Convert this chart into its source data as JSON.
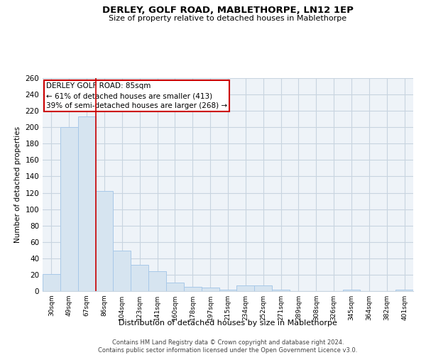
{
  "title": "DERLEY, GOLF ROAD, MABLETHORPE, LN12 1EP",
  "subtitle": "Size of property relative to detached houses in Mablethorpe",
  "xlabel": "Distribution of detached houses by size in Mablethorpe",
  "ylabel": "Number of detached properties",
  "bin_labels": [
    "30sqm",
    "49sqm",
    "67sqm",
    "86sqm",
    "104sqm",
    "123sqm",
    "141sqm",
    "160sqm",
    "178sqm",
    "197sqm",
    "215sqm",
    "234sqm",
    "252sqm",
    "271sqm",
    "289sqm",
    "308sqm",
    "326sqm",
    "345sqm",
    "364sqm",
    "382sqm",
    "401sqm"
  ],
  "bar_heights": [
    21,
    200,
    213,
    122,
    49,
    32,
    24,
    10,
    5,
    4,
    2,
    7,
    7,
    2,
    0,
    0,
    0,
    2,
    0,
    0,
    2
  ],
  "bar_color": "#d6e4f0",
  "bar_edge_color": "#a8c8e8",
  "vline_color": "#cc0000",
  "vline_x": 2.5,
  "ylim": [
    0,
    260
  ],
  "yticks": [
    0,
    20,
    40,
    60,
    80,
    100,
    120,
    140,
    160,
    180,
    200,
    220,
    240,
    260
  ],
  "annotation_title": "DERLEY GOLF ROAD: 85sqm",
  "annotation_line1": "← 61% of detached houses are smaller (413)",
  "annotation_line2": "39% of semi-detached houses are larger (268) →",
  "annotation_box_color": "#ffffff",
  "annotation_box_edge": "#cc0000",
  "footer_line1": "Contains HM Land Registry data © Crown copyright and database right 2024.",
  "footer_line2": "Contains public sector information licensed under the Open Government Licence v3.0.",
  "background_color": "#ffffff",
  "grid_color": "#c8d4e0",
  "plot_bg_color": "#eef3f8"
}
